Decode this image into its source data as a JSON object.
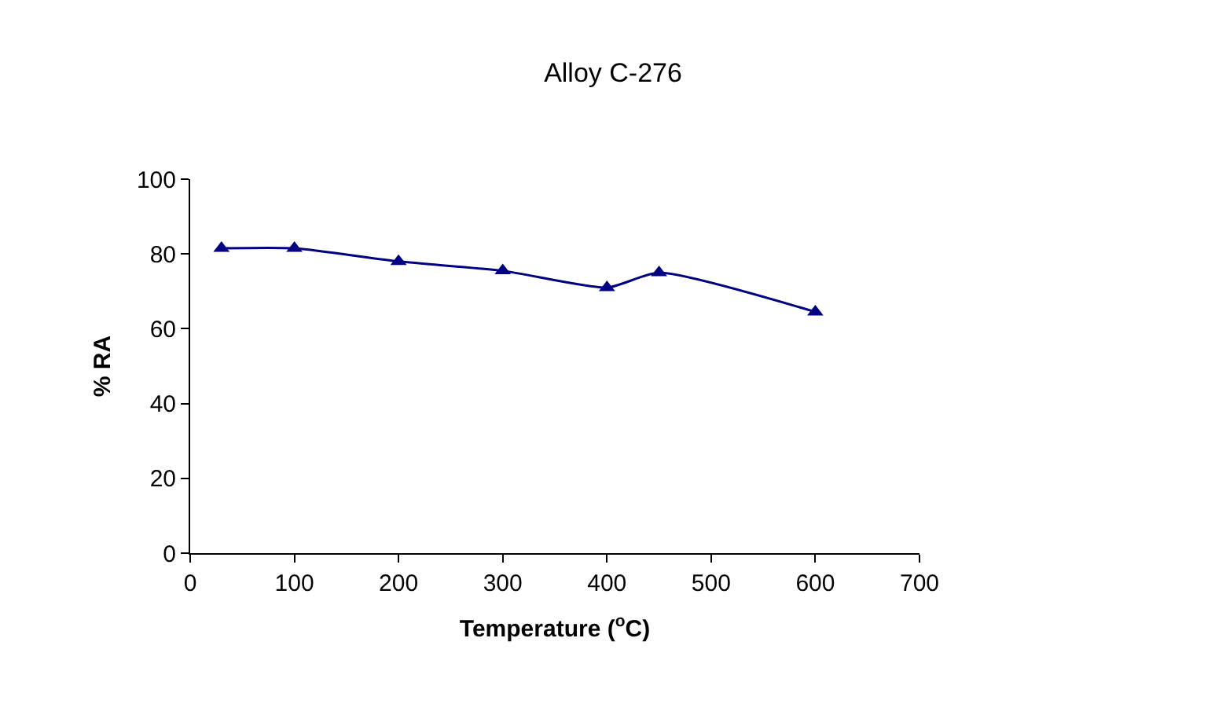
{
  "chart_data": {
    "type": "line",
    "title": "Alloy C-276",
    "xlabel": "Temperature ($^{o}$C)",
    "ylabel": "% RA",
    "x": [
      30,
      100,
      200,
      300,
      400,
      450,
      600
    ],
    "series": [
      {
        "color": "#000080",
        "values": [
          81.5,
          81.5,
          78,
          75.5,
          71,
          75,
          64.5
        ]
      }
    ],
    "xlim": [
      0,
      700
    ],
    "xticks": [
      0,
      100,
      200,
      300,
      400,
      500,
      600,
      700
    ],
    "ylim": [
      0,
      100
    ],
    "yticks": [
      0,
      20,
      40,
      60,
      80,
      100
    ],
    "marker": "triangle",
    "line_style": "solid",
    "grid": false
  }
}
